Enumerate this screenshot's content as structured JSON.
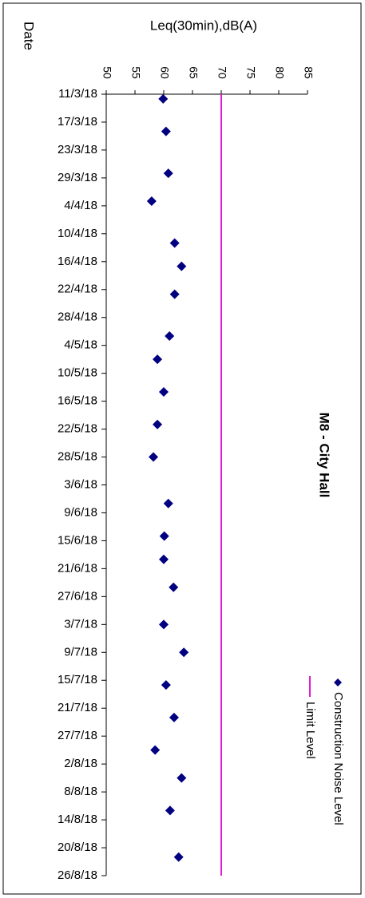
{
  "chart_data": {
    "type": "scatter",
    "title": "M8 - City Hall",
    "x_label": "Date",
    "y_label": "Leq(30min),dB(A)",
    "xlim": [
      "2018-03-11",
      "2018-08-26"
    ],
    "xticks": [
      {
        "value": "2018-03-11",
        "label": "11/3/18"
      },
      {
        "value": "2018-03-17",
        "label": "17/3/18"
      },
      {
        "value": "2018-03-23",
        "label": "23/3/18"
      },
      {
        "value": "2018-03-29",
        "label": "29/3/18"
      },
      {
        "value": "2018-04-04",
        "label": "4/4/18"
      },
      {
        "value": "2018-04-10",
        "label": "10/4/18"
      },
      {
        "value": "2018-04-16",
        "label": "16/4/18"
      },
      {
        "value": "2018-04-22",
        "label": "22/4/18"
      },
      {
        "value": "2018-04-28",
        "label": "28/4/18"
      },
      {
        "value": "2018-05-04",
        "label": "4/5/18"
      },
      {
        "value": "2018-05-10",
        "label": "10/5/18"
      },
      {
        "value": "2018-05-16",
        "label": "16/5/18"
      },
      {
        "value": "2018-05-22",
        "label": "22/5/18"
      },
      {
        "value": "2018-05-28",
        "label": "28/5/18"
      },
      {
        "value": "2018-06-03",
        "label": "3/6/18"
      },
      {
        "value": "2018-06-09",
        "label": "9/6/18"
      },
      {
        "value": "2018-06-15",
        "label": "15/6/18"
      },
      {
        "value": "2018-06-21",
        "label": "21/6/18"
      },
      {
        "value": "2018-06-27",
        "label": "27/6/18"
      },
      {
        "value": "2018-07-03",
        "label": "3/7/18"
      },
      {
        "value": "2018-07-09",
        "label": "9/7/18"
      },
      {
        "value": "2018-07-15",
        "label": "15/7/18"
      },
      {
        "value": "2018-07-21",
        "label": "21/7/18"
      },
      {
        "value": "2018-07-27",
        "label": "27/7/18"
      },
      {
        "value": "2018-08-02",
        "label": "2/8/18"
      },
      {
        "value": "2018-08-08",
        "label": "8/8/18"
      },
      {
        "value": "2018-08-14",
        "label": "14/8/18"
      },
      {
        "value": "2018-08-20",
        "label": "20/8/18"
      },
      {
        "value": "2018-08-26",
        "label": "26/8/18"
      }
    ],
    "ylim": [
      50,
      85
    ],
    "yticks": [
      50,
      55,
      60,
      65,
      70,
      75,
      80,
      85
    ],
    "legend": "right",
    "series": [
      {
        "name": "Construction Noise Level",
        "color": "#000080",
        "type": "scatter",
        "x": [
          "2018-03-12",
          "2018-03-19",
          "2018-03-28",
          "2018-04-03",
          "2018-04-12",
          "2018-04-17",
          "2018-04-23",
          "2018-05-02",
          "2018-05-07",
          "2018-05-14",
          "2018-05-21",
          "2018-05-28",
          "2018-06-07",
          "2018-06-14",
          "2018-06-19",
          "2018-06-25",
          "2018-07-03",
          "2018-07-09",
          "2018-07-16",
          "2018-07-23",
          "2018-07-30",
          "2018-08-05",
          "2018-08-12",
          "2018-08-22"
        ],
        "values": [
          59.9,
          60.4,
          60.8,
          57.9,
          61.9,
          63.1,
          61.9,
          61.0,
          58.9,
          60.0,
          58.9,
          58.2,
          60.8,
          60.1,
          60.0,
          61.7,
          60.0,
          63.5,
          60.4,
          61.8,
          58.5,
          63.1,
          61.1,
          62.6
        ]
      },
      {
        "name": "Limit Level",
        "color": "#e020d0",
        "type": "line",
        "x": [
          "2018-03-11",
          "2018-08-26"
        ],
        "values": [
          70,
          70
        ]
      }
    ]
  }
}
